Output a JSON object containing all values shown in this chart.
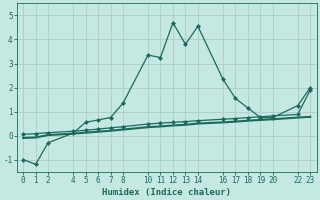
{
  "xlabel": "Humidex (Indice chaleur)",
  "background_color": "#c5e8e3",
  "grid_color": "#b0d0ca",
  "line_color": "#1a6b5a",
  "xlim": [
    -0.5,
    23.5
  ],
  "ylim": [
    -1.5,
    5.5
  ],
  "xticks": [
    0,
    1,
    2,
    4,
    5,
    6,
    7,
    8,
    10,
    11,
    12,
    13,
    14,
    16,
    17,
    18,
    19,
    20,
    22,
    23
  ],
  "yticks": [
    -1,
    0,
    1,
    2,
    3,
    4,
    5
  ],
  "curve1_x": [
    0,
    1,
    2,
    4,
    5,
    6,
    7,
    8,
    10,
    11,
    12,
    13,
    14,
    16,
    17,
    18,
    19,
    20,
    22,
    23
  ],
  "curve1_y": [
    -1.0,
    -1.2,
    -0.3,
    0.1,
    0.55,
    0.65,
    0.75,
    1.35,
    3.35,
    3.25,
    4.7,
    3.8,
    4.55,
    2.35,
    1.55,
    1.15,
    0.75,
    0.75,
    1.25,
    2.0
  ],
  "curve2_x": [
    0,
    1,
    2,
    4,
    5,
    6,
    7,
    8,
    10,
    11,
    12,
    13,
    14,
    16,
    17,
    18,
    19,
    20,
    22,
    23
  ],
  "curve2_y": [
    0.05,
    0.08,
    0.12,
    0.18,
    0.22,
    0.27,
    0.32,
    0.37,
    0.48,
    0.52,
    0.55,
    0.58,
    0.62,
    0.68,
    0.71,
    0.75,
    0.78,
    0.82,
    0.88,
    1.9
  ],
  "curve3_x": [
    0,
    1,
    2,
    4,
    5,
    6,
    7,
    8,
    10,
    11,
    12,
    13,
    14,
    16,
    17,
    18,
    19,
    20,
    22,
    23
  ],
  "curve3_y": [
    -0.1,
    -0.08,
    0.02,
    0.08,
    0.12,
    0.16,
    0.2,
    0.25,
    0.35,
    0.38,
    0.42,
    0.45,
    0.5,
    0.55,
    0.58,
    0.62,
    0.65,
    0.68,
    0.75,
    0.78
  ]
}
